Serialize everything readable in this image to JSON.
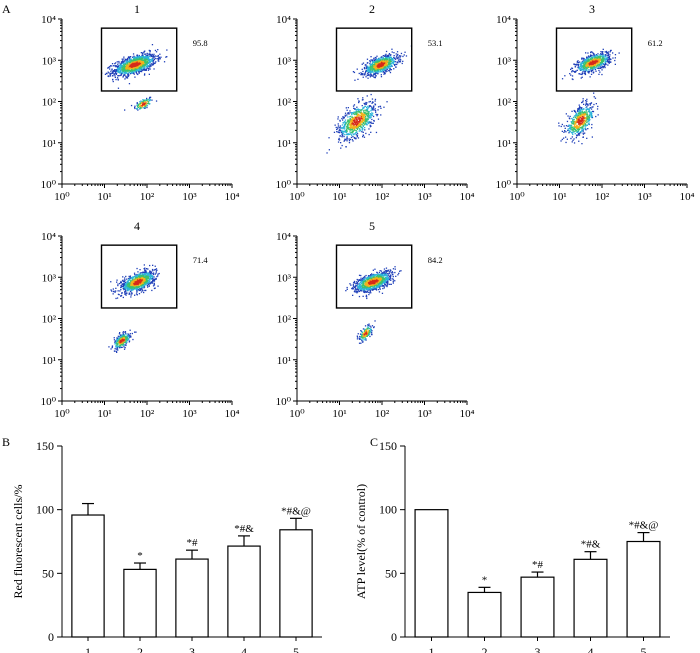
{
  "figure": {
    "panel_a_label": "A",
    "panel_b_label": "B",
    "panel_c_label": "C"
  },
  "chart_data": [
    {
      "type": "scatter",
      "panel": "A",
      "description_kind": "flow-cytometry-density-plots",
      "axis_scale": "log",
      "xlim": [
        1,
        10000
      ],
      "ylim": [
        1,
        10000
      ],
      "tick_labels": [
        "10⁰",
        "10¹",
        "10²",
        "10³",
        "10⁴"
      ],
      "plots": [
        {
          "title": "1",
          "gate_percent": "95.8",
          "upper": {
            "x": 50,
            "y": 800,
            "sx": 0.25,
            "sy": 0.13,
            "n": 1100
          },
          "lower": {
            "x": 80,
            "y": 90,
            "sx": 0.11,
            "sy": 0.08,
            "n": 110
          }
        },
        {
          "title": "2",
          "gate_percent": "53.1",
          "upper": {
            "x": 90,
            "y": 800,
            "sx": 0.2,
            "sy": 0.12,
            "n": 750
          },
          "lower": {
            "x": 25,
            "y": 35,
            "sx": 0.22,
            "sy": 0.22,
            "n": 700
          }
        },
        {
          "title": "3",
          "gate_percent": "61.2",
          "upper": {
            "x": 60,
            "y": 900,
            "sx": 0.2,
            "sy": 0.12,
            "n": 700
          },
          "lower": {
            "x": 30,
            "y": 35,
            "sx": 0.17,
            "sy": 0.2,
            "n": 500
          }
        },
        {
          "title": "4",
          "gate_percent": "71.4",
          "upper": {
            "x": 60,
            "y": 800,
            "sx": 0.2,
            "sy": 0.13,
            "n": 900
          },
          "lower": {
            "x": 25,
            "y": 30,
            "sx": 0.1,
            "sy": 0.1,
            "n": 260
          }
        },
        {
          "title": "5",
          "gate_percent": "84.2",
          "upper": {
            "x": 60,
            "y": 800,
            "sx": 0.22,
            "sy": 0.12,
            "n": 950
          },
          "lower": {
            "x": 40,
            "y": 45,
            "sx": 0.08,
            "sy": 0.1,
            "n": 140
          }
        }
      ]
    },
    {
      "type": "bar",
      "panel": "B",
      "categories": [
        "1",
        "2",
        "3",
        "4",
        "5"
      ],
      "values": [
        95.8,
        53.1,
        61.2,
        71.4,
        84.2
      ],
      "errors": [
        9,
        5,
        7,
        8,
        9
      ],
      "annotations": [
        "",
        "*",
        "*#",
        "*#&",
        "*#&@"
      ],
      "ylabel": "Red fluorescent cells/%",
      "ylim": [
        0,
        150
      ],
      "yticks": [
        0,
        50,
        100,
        150
      ]
    },
    {
      "type": "bar",
      "panel": "C",
      "categories": [
        "1",
        "2",
        "3",
        "4",
        "5"
      ],
      "values": [
        100,
        35,
        47,
        61,
        75
      ],
      "errors": [
        0,
        4,
        4,
        6,
        7
      ],
      "annotations": [
        "",
        "*",
        "*#",
        "*#&",
        "*#&@"
      ],
      "ylabel": "ATP level(% of control)",
      "ylim": [
        0,
        150
      ],
      "yticks": [
        0,
        50,
        100,
        150
      ]
    }
  ]
}
